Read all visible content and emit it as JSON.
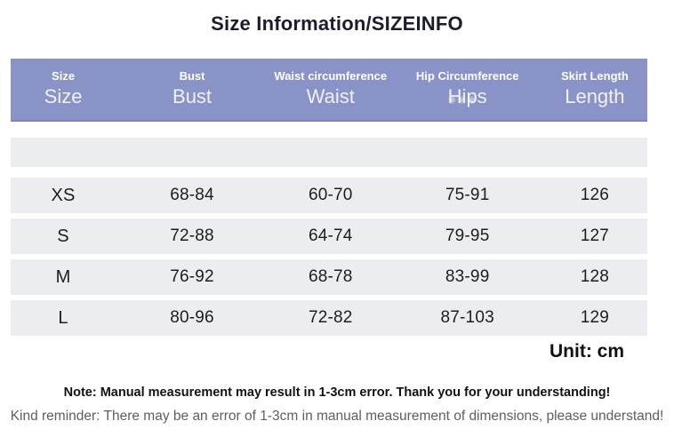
{
  "title": "Size Information/SIZEINFO",
  "chart_data": {
    "type": "table",
    "title": "Size Information/SIZEINFO",
    "columns": [
      {
        "en": "Size",
        "label": "Size"
      },
      {
        "en": "Bust",
        "label": "Bust"
      },
      {
        "en": "Waist circumference",
        "label": "Waist"
      },
      {
        "en": "Hip Circumference",
        "label": "Hips"
      },
      {
        "en": "Skirt Length",
        "label": "Length"
      }
    ],
    "rows": [
      [
        "XS",
        "68-84",
        "60-70",
        "75-91",
        "126"
      ],
      [
        "S",
        "72-88",
        "64-74",
        "79-95",
        "127"
      ],
      [
        "M",
        "76-92",
        "68-78",
        "83-99",
        "128"
      ],
      [
        "L",
        "80-96",
        "72-82",
        "87-103",
        "129"
      ]
    ],
    "unit": "cm"
  },
  "unit_label": "Unit: cm",
  "note": "Note: Manual measurement may result in 1-3cm error. Thank you for your understanding!",
  "kind_reminder": "Kind reminder: There may be an error of 1-3cm in manual measurement of dimensions, please understand!",
  "colors": {
    "header-bg": "#8a93c8",
    "header-edge": "#7b84ba",
    "row-bg": "#ecedf0",
    "text-dark": "#1d1d1d",
    "title-color": "#1c1c30",
    "reminder-color": "#5f5f5f"
  }
}
